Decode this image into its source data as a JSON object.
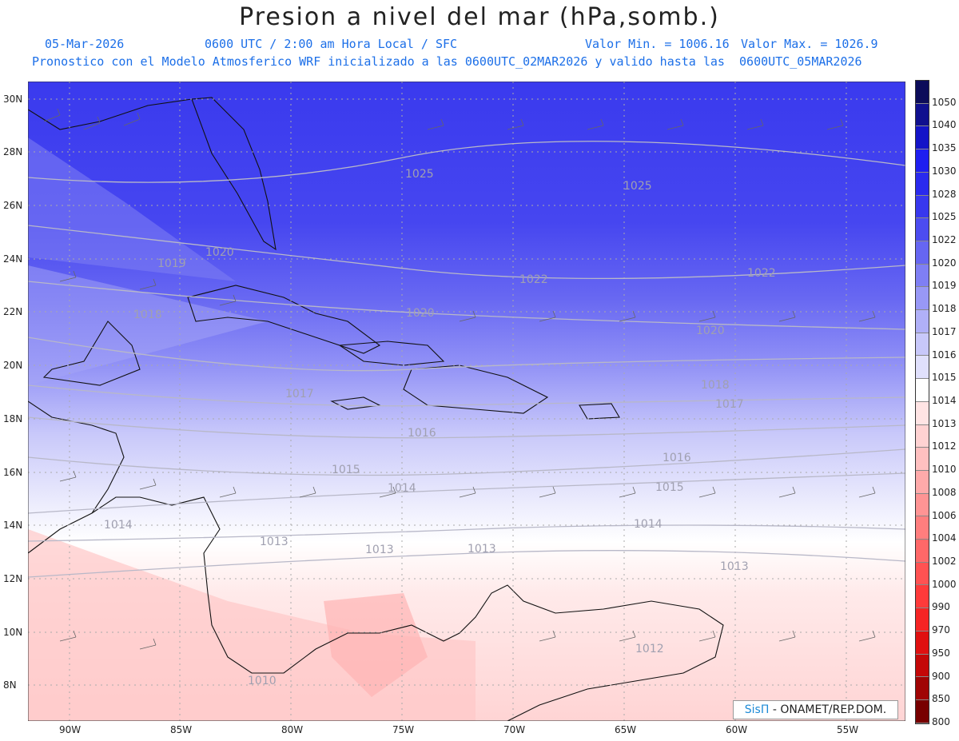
{
  "header": {
    "title": "Presion a nivel del mar (hPa,somb.)",
    "date": "05-Mar-2026",
    "time": "0600 UTC / 2:00 am Hora Local / SFC",
    "min": "Valor Min. = 1006.16",
    "max": "Valor Max. = 1026.9",
    "model_line": "Pronostico con el Modelo Atmosferico WRF inicializado a las 0600UTC_02MAR2026 y valido hasta las  0600UTC_05MAR2026"
  },
  "axes": {
    "lat_labels": [
      "30N",
      "28N",
      "26N",
      "24N",
      "22N",
      "20N",
      "18N",
      "16N",
      "14N",
      "12N",
      "10N",
      "8N"
    ],
    "lon_labels": [
      "90W",
      "85W",
      "80W",
      "75W",
      "70W",
      "65W",
      "60W",
      "55W"
    ]
  },
  "contour_labels": [
    "1025",
    "1025",
    "1022",
    "1022",
    "1020",
    "1020",
    "1020",
    "1019",
    "1018",
    "1018",
    "1017",
    "1017",
    "1016",
    "1016",
    "1015",
    "1015",
    "1014",
    "1014",
    "1014",
    "1013",
    "1013",
    "1013",
    "1013",
    "1012",
    "1010"
  ],
  "colorbar": {
    "labels": [
      "1050",
      "1040",
      "1035",
      "1030",
      "1028",
      "1025",
      "1022",
      "1020",
      "1019",
      "1018",
      "1017",
      "1016",
      "1015",
      "1014",
      "1013",
      "1012",
      "1010",
      "1008",
      "1006",
      "1004",
      "1002",
      "1000",
      "990",
      "970",
      "950",
      "900",
      "850",
      "800"
    ],
    "colors": [
      "#0c0c5a",
      "#10108f",
      "#1414c8",
      "#1f1ff0",
      "#2a2aee",
      "#3838ee",
      "#4c4cf0",
      "#6666f2",
      "#7f7ff4",
      "#9898f6",
      "#b0b0f8",
      "#c8c8fa",
      "#e0e0fc",
      "#ffffff",
      "#ffe4e4",
      "#ffd2d2",
      "#ffc0c0",
      "#ffaaaa",
      "#ff9494",
      "#ff7e7e",
      "#ff6868",
      "#ff5252",
      "#ff3a3a",
      "#f52424",
      "#e01010",
      "#c40808",
      "#a00404",
      "#780000"
    ]
  },
  "credit": {
    "brand": "SisΠ",
    "text": " - ONAMET/REP.DOM."
  }
}
